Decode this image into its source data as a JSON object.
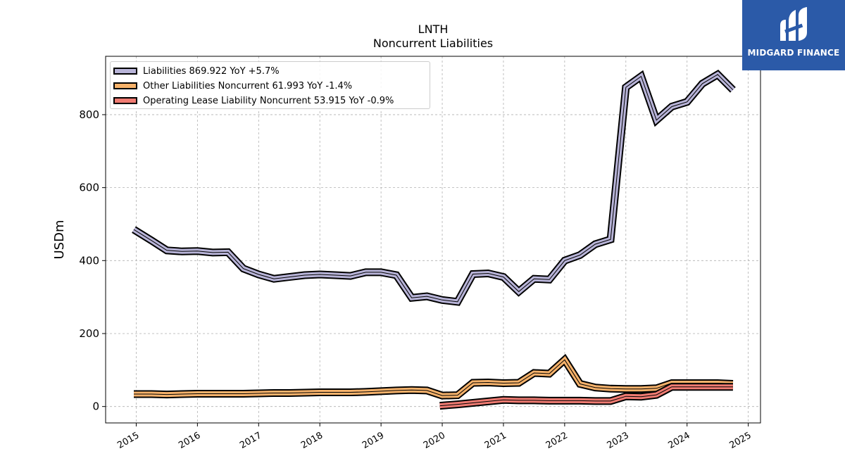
{
  "logo": {
    "brand": "MIDGARD FINANCE"
  },
  "chart_data": {
    "type": "line",
    "title": "LNTH",
    "subtitle": "Noncurrent  Liabilities",
    "ylabel": "USDm",
    "xlabel": "",
    "xlim": [
      2014.5,
      2025.2
    ],
    "ylim": [
      -45,
      960
    ],
    "yticks": [
      0,
      200,
      400,
      600,
      800
    ],
    "xticks": [
      "2015",
      "2016",
      "2017",
      "2018",
      "2019",
      "2020",
      "2021",
      "2022",
      "2023",
      "2024",
      "2025"
    ],
    "grid": true,
    "legend_position": "top-left",
    "series": [
      {
        "name": "Liabilities",
        "legend_label": "Liabilities  869.922 YoY +5.7%",
        "color": "#b8b4d8",
        "x": [
          2014.96,
          2015.25,
          2015.5,
          2015.75,
          2016.0,
          2016.25,
          2016.5,
          2016.75,
          2017.0,
          2017.25,
          2017.5,
          2017.75,
          2018.0,
          2018.25,
          2018.5,
          2018.75,
          2019.0,
          2019.25,
          2019.5,
          2019.75,
          2020.0,
          2020.25,
          2020.5,
          2020.75,
          2021.0,
          2021.25,
          2021.5,
          2021.75,
          2022.0,
          2022.25,
          2022.5,
          2022.75,
          2023.0,
          2023.25,
          2023.5,
          2023.75,
          2024.0,
          2024.25,
          2024.5,
          2024.75
        ],
        "values": [
          485,
          455,
          428,
          425,
          426,
          422,
          423,
          378,
          362,
          350,
          355,
          360,
          362,
          360,
          358,
          368,
          368,
          360,
          298,
          302,
          292,
          287,
          363,
          365,
          355,
          315,
          350,
          348,
          400,
          415,
          445,
          458,
          875,
          905,
          785,
          822,
          835,
          885,
          910,
          868
        ]
      },
      {
        "name": "Other Liabilities Noncurrent",
        "legend_label": "Other Liabilities Noncurrent  61.993 YoY -1.4%",
        "color": "#f6b26b",
        "x": [
          2014.96,
          2015.25,
          2015.5,
          2015.75,
          2016.0,
          2016.25,
          2016.5,
          2016.75,
          2017.0,
          2017.25,
          2017.5,
          2017.75,
          2018.0,
          2018.25,
          2018.5,
          2018.75,
          2019.0,
          2019.25,
          2019.5,
          2019.75,
          2020.0,
          2020.25,
          2020.5,
          2020.75,
          2021.0,
          2021.25,
          2021.5,
          2021.75,
          2022.0,
          2022.25,
          2022.5,
          2022.75,
          2023.0,
          2023.25,
          2023.5,
          2023.75,
          2024.0,
          2024.25,
          2024.5,
          2024.75
        ],
        "values": [
          34,
          34,
          33,
          34,
          35,
          35,
          35,
          35,
          36,
          37,
          37,
          38,
          39,
          39,
          39,
          40,
          42,
          44,
          45,
          44,
          30,
          31,
          65,
          66,
          64,
          65,
          92,
          90,
          128,
          62,
          52,
          49,
          48,
          48,
          50,
          64,
          64,
          64,
          64,
          62
        ]
      },
      {
        "name": "Operating Lease Liability Noncurrent",
        "legend_label": "Operating Lease Liability Noncurrent  53.915 YoY -0.9%",
        "color": "#f07b72",
        "x": [
          2019.96,
          2020.25,
          2020.5,
          2020.75,
          2021.0,
          2021.25,
          2021.5,
          2021.75,
          2022.0,
          2022.25,
          2022.5,
          2022.75,
          2023.0,
          2023.25,
          2023.5,
          2023.75,
          2024.0,
          2024.25,
          2024.5,
          2024.75
        ],
        "values": [
          2,
          6,
          10,
          14,
          18,
          17,
          17,
          16,
          16,
          16,
          15,
          15,
          28,
          27,
          32,
          54,
          54,
          54,
          54,
          54
        ]
      }
    ]
  }
}
